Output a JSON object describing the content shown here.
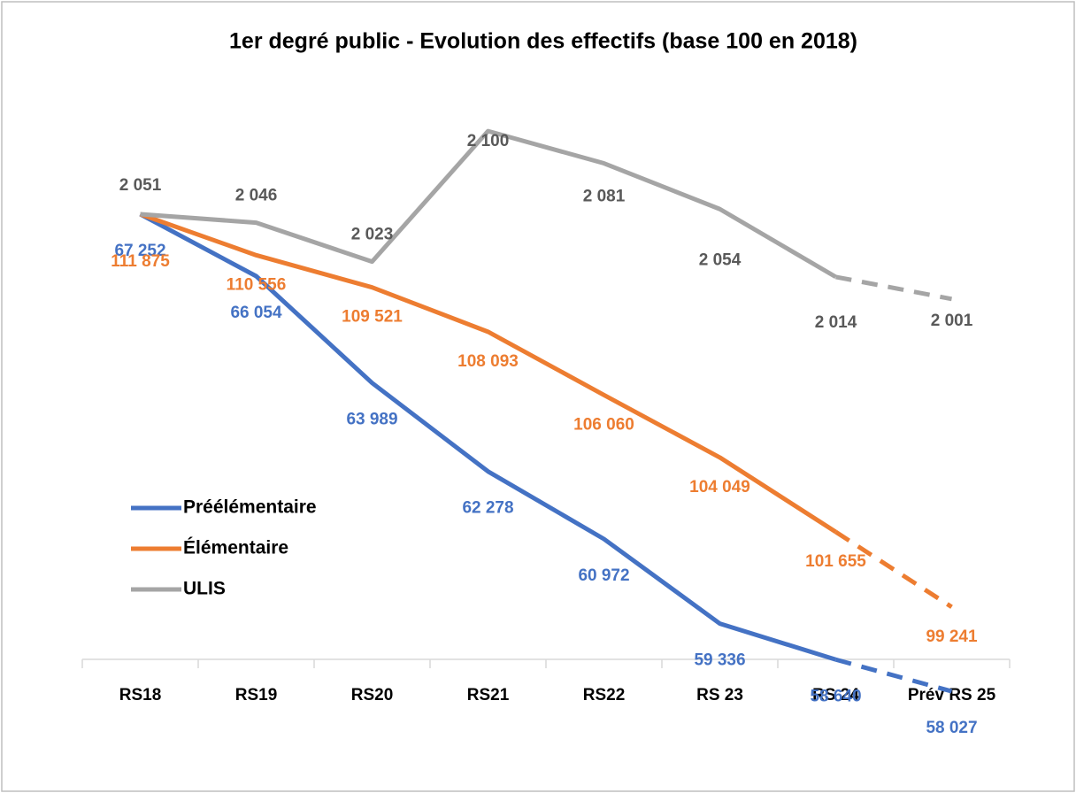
{
  "chart_data": {
    "type": "line",
    "title": "1er degré public - Evolution des effectifs (base 100 en 2018)",
    "categories": [
      "RS18",
      "RS19",
      "RS20",
      "RS21",
      "RS22",
      "RS 23",
      "RS 24",
      "Prév RS 25"
    ],
    "dashed_last_segment": true,
    "series": [
      {
        "name": "Préélémentaire",
        "color": "#4472c4",
        "label_color": "#4472c4",
        "values": [
          67252,
          66054,
          63989,
          62278,
          60972,
          59336,
          58640,
          58027
        ],
        "value_labels": [
          "67 252",
          "66 054",
          "63 989",
          "62 278",
          "60 972",
          "59 336",
          "58 640",
          "58 027"
        ]
      },
      {
        "name": "Élémentaire",
        "color": "#ed7d31",
        "label_color": "#ed7d31",
        "values": [
          111875,
          110556,
          109521,
          108093,
          106060,
          104049,
          101655,
          99241
        ],
        "value_labels": [
          "111 875",
          "110 556",
          "109 521",
          "108 093",
          "106 060",
          "104 049",
          "101 655",
          "99 241"
        ]
      },
      {
        "name": "ULIS",
        "color": "#a5a5a5",
        "label_color": "#595959",
        "values": [
          2051,
          2046,
          2023,
          2100,
          2081,
          2054,
          2014,
          2001
        ],
        "value_labels": [
          "2 051",
          "2 046",
          "2 023",
          "2 100",
          "2 081",
          "2 054",
          "2 014",
          "2 001"
        ]
      }
    ]
  }
}
